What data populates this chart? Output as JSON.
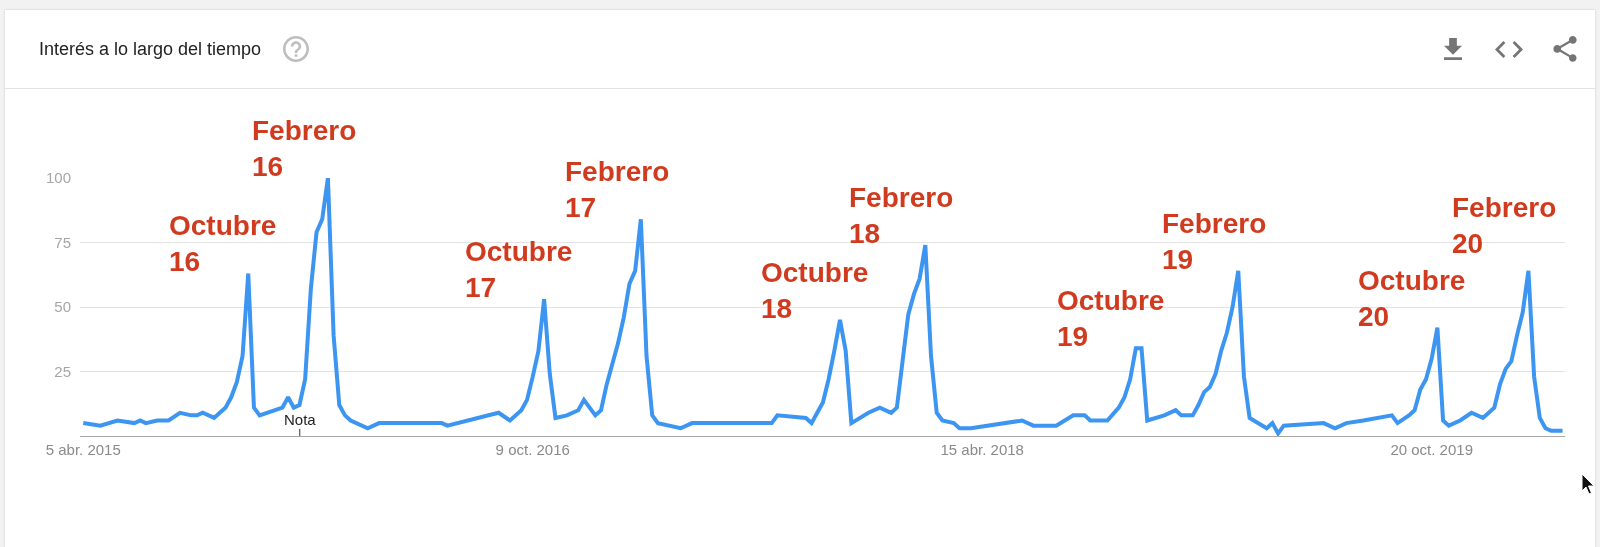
{
  "chart_data": {
    "type": "line",
    "title": "Interés a lo largo del tiempo",
    "x": [
      "2015-04-05",
      "2015-04-26",
      "2015-05-17",
      "2015-06-07",
      "2015-06-14",
      "2015-06-21",
      "2015-07-05",
      "2015-07-19",
      "2015-08-02",
      "2015-08-16",
      "2015-08-23",
      "2015-08-30",
      "2015-09-13",
      "2015-09-20",
      "2015-09-27",
      "2015-10-04",
      "2015-10-11",
      "2015-10-18",
      "2015-10-25",
      "2015-11-01",
      "2015-11-08",
      "2015-12-06",
      "2015-12-13",
      "2015-12-20",
      "2015-12-27",
      "2016-01-03",
      "2016-01-10",
      "2016-01-17",
      "2016-01-24",
      "2016-01-31",
      "2016-02-07",
      "2016-02-14",
      "2016-02-21",
      "2016-02-28",
      "2016-03-20",
      "2016-04-03",
      "2016-06-19",
      "2016-06-26",
      "2016-08-28",
      "2016-09-11",
      "2016-09-25",
      "2016-10-02",
      "2016-10-09",
      "2016-10-16",
      "2016-10-23",
      "2016-10-30",
      "2016-11-06",
      "2016-11-20",
      "2016-12-04",
      "2016-12-11",
      "2016-12-25",
      "2017-01-01",
      "2017-01-08",
      "2017-01-15",
      "2017-01-22",
      "2017-01-29",
      "2017-02-05",
      "2017-02-12",
      "2017-02-19",
      "2017-02-26",
      "2017-03-05",
      "2017-03-12",
      "2017-04-09",
      "2017-04-23",
      "2017-07-30",
      "2017-08-06",
      "2017-09-10",
      "2017-09-17",
      "2017-09-24",
      "2017-10-01",
      "2017-10-08",
      "2017-10-15",
      "2017-10-22",
      "2017-10-29",
      "2017-11-05",
      "2017-11-26",
      "2017-12-10",
      "2017-12-24",
      "2017-12-31",
      "2018-01-07",
      "2018-01-14",
      "2018-01-21",
      "2018-01-28",
      "2018-02-04",
      "2018-02-11",
      "2018-02-18",
      "2018-02-25",
      "2018-03-11",
      "2018-03-18",
      "2018-04-01",
      "2018-06-03",
      "2018-06-17",
      "2018-07-15",
      "2018-08-05",
      "2018-08-19",
      "2018-08-26",
      "2018-09-16",
      "2018-09-30",
      "2018-10-07",
      "2018-10-14",
      "2018-10-21",
      "2018-10-28",
      "2018-11-04",
      "2018-11-25",
      "2018-12-09",
      "2018-12-16",
      "2018-12-30",
      "2019-01-06",
      "2019-01-13",
      "2019-01-20",
      "2019-01-27",
      "2019-02-03",
      "2019-02-10",
      "2019-02-17",
      "2019-02-24",
      "2019-03-03",
      "2019-03-10",
      "2019-03-31",
      "2019-04-07",
      "2019-04-14",
      "2019-04-21",
      "2019-06-09",
      "2019-06-23",
      "2019-07-07",
      "2019-07-28",
      "2019-09-01",
      "2019-09-08",
      "2019-09-22",
      "2019-09-29",
      "2019-10-06",
      "2019-10-13",
      "2019-10-20",
      "2019-10-27",
      "2019-11-03",
      "2019-11-10",
      "2019-11-24",
      "2019-12-08",
      "2019-12-22",
      "2020-01-05",
      "2020-01-12",
      "2020-01-19",
      "2020-01-26",
      "2020-02-02",
      "2020-02-09",
      "2020-02-16",
      "2020-02-23",
      "2020-03-01",
      "2020-03-08",
      "2020-03-15",
      "2020-03-29"
    ],
    "values": [
      5,
      4,
      6,
      5,
      6,
      5,
      6,
      6,
      9,
      8,
      8,
      9,
      7,
      9,
      11,
      15,
      21,
      31,
      63,
      11,
      8,
      11,
      15,
      11,
      12,
      22,
      57,
      79,
      84,
      100,
      39,
      12,
      8,
      6,
      3,
      5,
      5,
      4,
      9,
      6,
      10,
      14,
      23,
      33,
      53,
      24,
      7,
      8,
      10,
      14,
      8,
      10,
      20,
      28,
      36,
      46,
      59,
      64,
      84,
      31,
      8,
      5,
      3,
      5,
      5,
      8,
      7,
      5,
      9,
      13,
      22,
      33,
      45,
      33,
      5,
      9,
      11,
      9,
      11,
      29,
      47,
      55,
      61,
      74,
      31,
      9,
      6,
      5,
      3,
      3,
      6,
      4,
      4,
      8,
      8,
      6,
      6,
      11,
      15,
      22,
      34,
      34,
      6,
      8,
      10,
      8,
      8,
      12,
      17,
      19,
      24,
      33,
      40,
      50,
      64,
      23,
      7,
      3,
      5,
      1,
      4,
      5,
      3,
      5,
      6,
      8,
      5,
      8,
      10,
      18,
      22,
      30,
      42,
      6,
      4,
      6,
      9,
      7,
      11,
      20,
      26,
      29,
      39,
      48,
      64,
      23,
      7,
      3,
      2,
      2
    ],
    "color": "#3d95f2",
    "xlim": [
      "2015-04-01",
      "2020-04-01"
    ],
    "xticks": [
      {
        "value": "2015-04-05",
        "label": "5 abr. 2015"
      },
      {
        "value": "2016-10-09",
        "label": "9 oct. 2016"
      },
      {
        "value": "2018-04-15",
        "label": "15 abr. 2018"
      },
      {
        "value": "2019-10-20",
        "label": "20 oct. 2019"
      }
    ],
    "ylim": [
      0,
      100
    ],
    "yticks": [
      25,
      50,
      75,
      100
    ],
    "grid": "y",
    "annotations": [
      {
        "text": "Octubre\n16",
        "x": "2015-10-25",
        "y": 63
      },
      "Nota",
      {
        "text": "Febrero\n16",
        "x": "2016-01-31",
        "y": 100
      },
      {
        "text": "Octubre\n17",
        "x": "2016-10-23",
        "y": 53
      },
      {
        "text": "Febrero\n17",
        "x": "2017-02-19",
        "y": 84
      },
      {
        "text": "Octubre\n18",
        "x": "2017-10-22",
        "y": 45
      },
      {
        "text": "Febrero\n18",
        "x": "2018-02-04",
        "y": 74
      },
      {
        "text": "Octubre\n19",
        "x": "2018-10-21",
        "y": 34
      },
      {
        "text": "Febrero\n19",
        "x": "2019-02-24",
        "y": 64
      },
      {
        "text": "Octubre\n20",
        "x": "2019-10-27",
        "y": 42
      },
      {
        "text": "Febrero\n20",
        "x": "2020-02-16",
        "y": 64
      }
    ]
  }
}
